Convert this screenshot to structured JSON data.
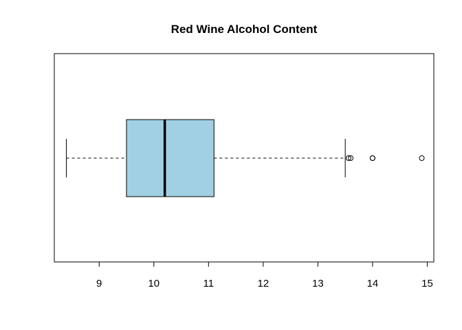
{
  "chart_data": {
    "type": "boxplot",
    "orientation": "horizontal",
    "title": "Red Wine Alcohol Content",
    "xlabel": "",
    "ylabel": "",
    "xlim": [
      8.18,
      15.12
    ],
    "ticks": [
      9,
      10,
      11,
      12,
      13,
      14,
      15
    ],
    "tick_labels": [
      "9",
      "10",
      "11",
      "12",
      "13",
      "14",
      "15"
    ],
    "box": {
      "whisker_low": 8.4,
      "q1": 9.5,
      "median": 10.2,
      "q3": 11.1,
      "whisker_high": 13.5
    },
    "outliers": [
      13.56,
      13.6,
      14.0,
      14.0,
      14.9
    ],
    "box_color": "#a1d0e2",
    "grid": false
  }
}
